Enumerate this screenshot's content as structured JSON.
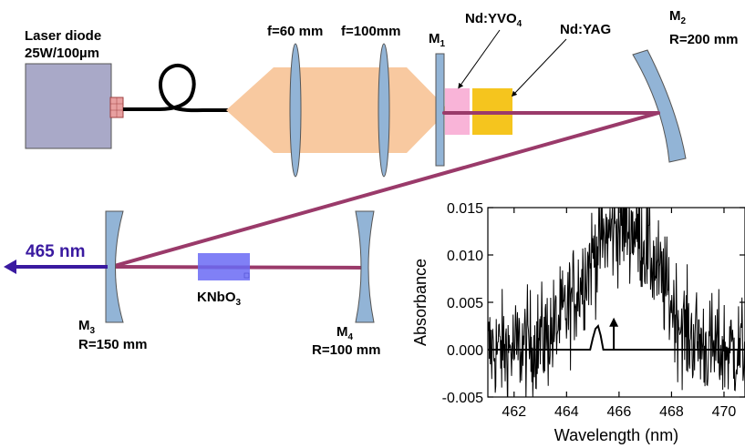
{
  "diagram": {
    "labels": {
      "laser_diode_line1": "Laser diode",
      "laser_diode_line2": "25W/100µm",
      "lens1": "f=60 mm",
      "lens2": "f=100mm",
      "m1": "M",
      "m1_sub": "1",
      "ndyvo4": "Nd:YVO",
      "ndyvo4_sub": "4",
      "ndyag": "Nd:YAG",
      "m2": "M",
      "m2_sub": "2",
      "m2_radius": "R=200 mm",
      "output_wavelength": "465 nm",
      "knbo3": "KNbO",
      "knbo3_sub": "3",
      "m3": "M",
      "m3_sub": "3",
      "m3_radius": "R=150 mm",
      "m4": "M",
      "m4_sub": "4",
      "m4_radius": "R=100 mm"
    },
    "colors": {
      "laser_box": "#a9a9c8",
      "fiber_connector": "#e8a0a0",
      "pump_beam": "#f8c9a0",
      "lens": "#92b4d6",
      "mirror": "#92b4d6",
      "ndyvo4_crystal": "#f9b4d8",
      "ndyag_crystal": "#f5c51e",
      "cavity_beam": "#9a3a6a",
      "knbo3_crystal": "#6a6af5",
      "output_arrow": "#3a1aa0"
    }
  },
  "chart_data": {
    "type": "line",
    "xlabel": "Wavelength (nm)",
    "ylabel": "Absorbance",
    "xlim": [
      461,
      470.8
    ],
    "ylim": [
      -0.005,
      0.015
    ],
    "x_ticks": [
      462,
      464,
      466,
      468,
      470
    ],
    "y_ticks": [
      -0.005,
      0.0,
      0.005,
      0.01,
      0.015
    ],
    "y_tick_labels": [
      "-0.005",
      "0.000",
      "0.005",
      "0.010",
      "0.015"
    ],
    "series": [
      {
        "style": "noisy-absorption",
        "x": [
          461.0,
          462.0,
          463.0,
          463.5,
          464.0,
          464.5,
          465.0,
          465.5,
          466.0,
          466.5,
          467.0,
          467.5,
          468.0,
          468.5,
          469.0,
          469.5,
          470.0,
          470.8
        ],
        "y": [
          0.0,
          0.0,
          0.001,
          0.002,
          0.004,
          0.007,
          0.01,
          0.012,
          0.013,
          0.013,
          0.011,
          0.008,
          0.005,
          0.002,
          0.001,
          0.0,
          0.0,
          0.0
        ]
      },
      {
        "style": "laser-line",
        "x": [
          461.0,
          464.9,
          465.0,
          465.1,
          465.2,
          465.3,
          465.4,
          470.8
        ],
        "y": [
          0.0,
          0.0,
          0.0012,
          0.0022,
          0.0025,
          0.0015,
          0.0,
          0.0
        ]
      }
    ],
    "annotations": [
      {
        "type": "arrow",
        "x": 465.8,
        "y_from": 0.0,
        "y_to": 0.0032
      }
    ]
  }
}
